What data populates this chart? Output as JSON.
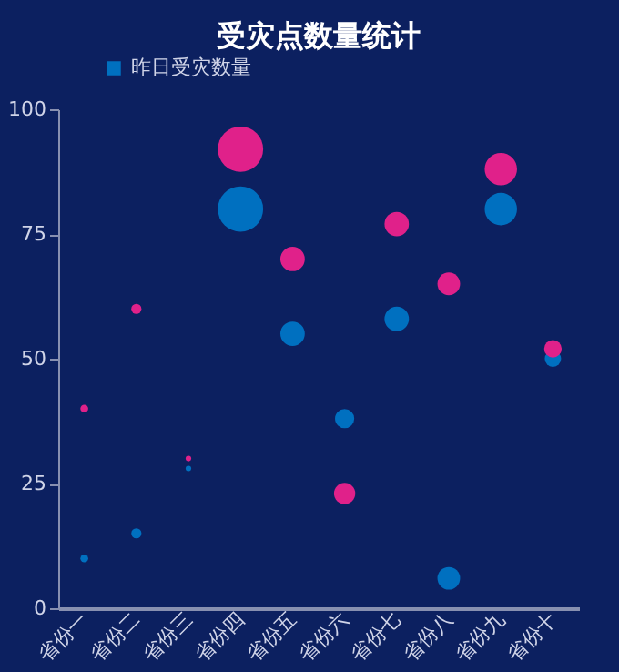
{
  "chart_data": {
    "type": "bubble",
    "title": "受灾点数量统计",
    "categories": [
      "省份一",
      "省份二",
      "省份三",
      "省份四",
      "省份五",
      "省份六",
      "省份七",
      "省份八",
      "省份九",
      "省份十"
    ],
    "series": [
      {
        "name": "昨日受灾数量",
        "color": "#0070c0",
        "values": [
          10,
          15,
          28,
          80,
          55,
          38,
          58,
          6,
          80,
          50
        ],
        "sizes": [
          0.03,
          0.05,
          0.015,
          1,
          0.29,
          0.18,
          0.29,
          0.25,
          0.51,
          0.13
        ]
      },
      {
        "color": "#e0218a",
        "values": [
          40,
          60,
          30,
          92,
          70,
          23,
          77,
          65,
          88,
          52
        ],
        "sizes": [
          0.03,
          0.05,
          0.015,
          1,
          0.29,
          0.22,
          0.29,
          0.25,
          0.51,
          0.15
        ]
      }
    ],
    "ylim": [
      0,
      100
    ],
    "yticks": [
      0,
      25,
      50,
      75,
      100
    ],
    "grid": false,
    "legend": "top left"
  }
}
